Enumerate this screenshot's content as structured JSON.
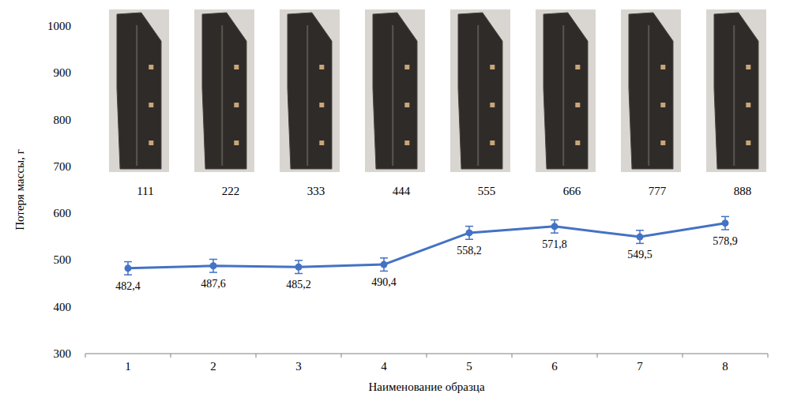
{
  "chart_data": {
    "type": "line",
    "x_label": "Наименование образца",
    "y_label": "Потеря массы, г",
    "categories": [
      "1",
      "2",
      "3",
      "4",
      "5",
      "6",
      "7",
      "8"
    ],
    "annotations": [
      "111",
      "222",
      "333",
      "444",
      "555",
      "666",
      "777",
      "888"
    ],
    "series": [
      {
        "color": "#4472c4",
        "marker": "circle",
        "line_style": "solid",
        "values": [
          482.4,
          487.6,
          485.2,
          490.4,
          558.2,
          571.8,
          549.5,
          578.9
        ],
        "value_labels": [
          "482,4",
          "487,6",
          "485,2",
          "490,4",
          "558,2",
          "571,8",
          "549,5",
          "578,9"
        ],
        "errors": [
          14,
          14,
          14,
          14,
          14,
          14,
          14,
          14
        ]
      }
    ],
    "ylim": [
      300,
      1000
    ],
    "yticks": [
      300,
      400,
      500,
      600,
      700,
      800,
      900,
      1000
    ],
    "grid": false,
    "data_labels": true
  }
}
